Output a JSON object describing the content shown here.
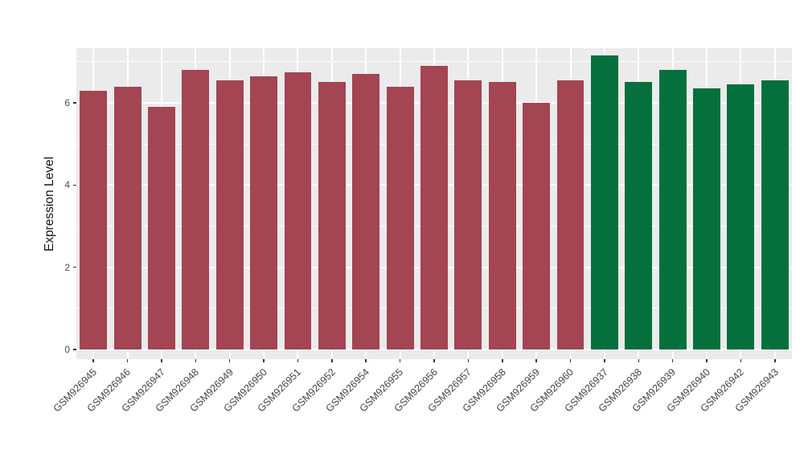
{
  "chart_data": {
    "type": "bar",
    "title": "",
    "xlabel": "",
    "ylabel": "Expression Level",
    "ylim": [
      0,
      7.33
    ],
    "yticks": [
      0,
      2,
      4,
      6
    ],
    "grid": true,
    "legend_position": "none",
    "panel_bg": "#EBEBEB",
    "grid_color": "#FFFFFF",
    "axis_text_color": "#4d4d4d",
    "categories": [
      "GSM926945",
      "GSM926946",
      "GSM926947",
      "GSM926948",
      "GSM926949",
      "GSM926950",
      "GSM926951",
      "GSM926952",
      "GSM926954",
      "GSM926955",
      "GSM926956",
      "GSM926957",
      "GSM926958",
      "GSM926959",
      "GSM926960",
      "GSM926937",
      "GSM926938",
      "GSM926939",
      "GSM926940",
      "GSM926942",
      "GSM926943"
    ],
    "values": [
      6.3,
      6.4,
      5.9,
      6.8,
      6.55,
      6.65,
      6.75,
      6.5,
      6.7,
      6.4,
      6.9,
      6.55,
      6.5,
      6.0,
      6.55,
      7.15,
      6.5,
      6.8,
      6.35,
      6.45,
      6.55
    ],
    "groups": [
      "maroon",
      "maroon",
      "maroon",
      "maroon",
      "maroon",
      "maroon",
      "maroon",
      "maroon",
      "maroon",
      "maroon",
      "maroon",
      "maroon",
      "maroon",
      "maroon",
      "maroon",
      "green",
      "green",
      "green",
      "green",
      "green",
      "green"
    ],
    "colors": {
      "maroon": "#A34552",
      "green": "#06703C"
    }
  }
}
